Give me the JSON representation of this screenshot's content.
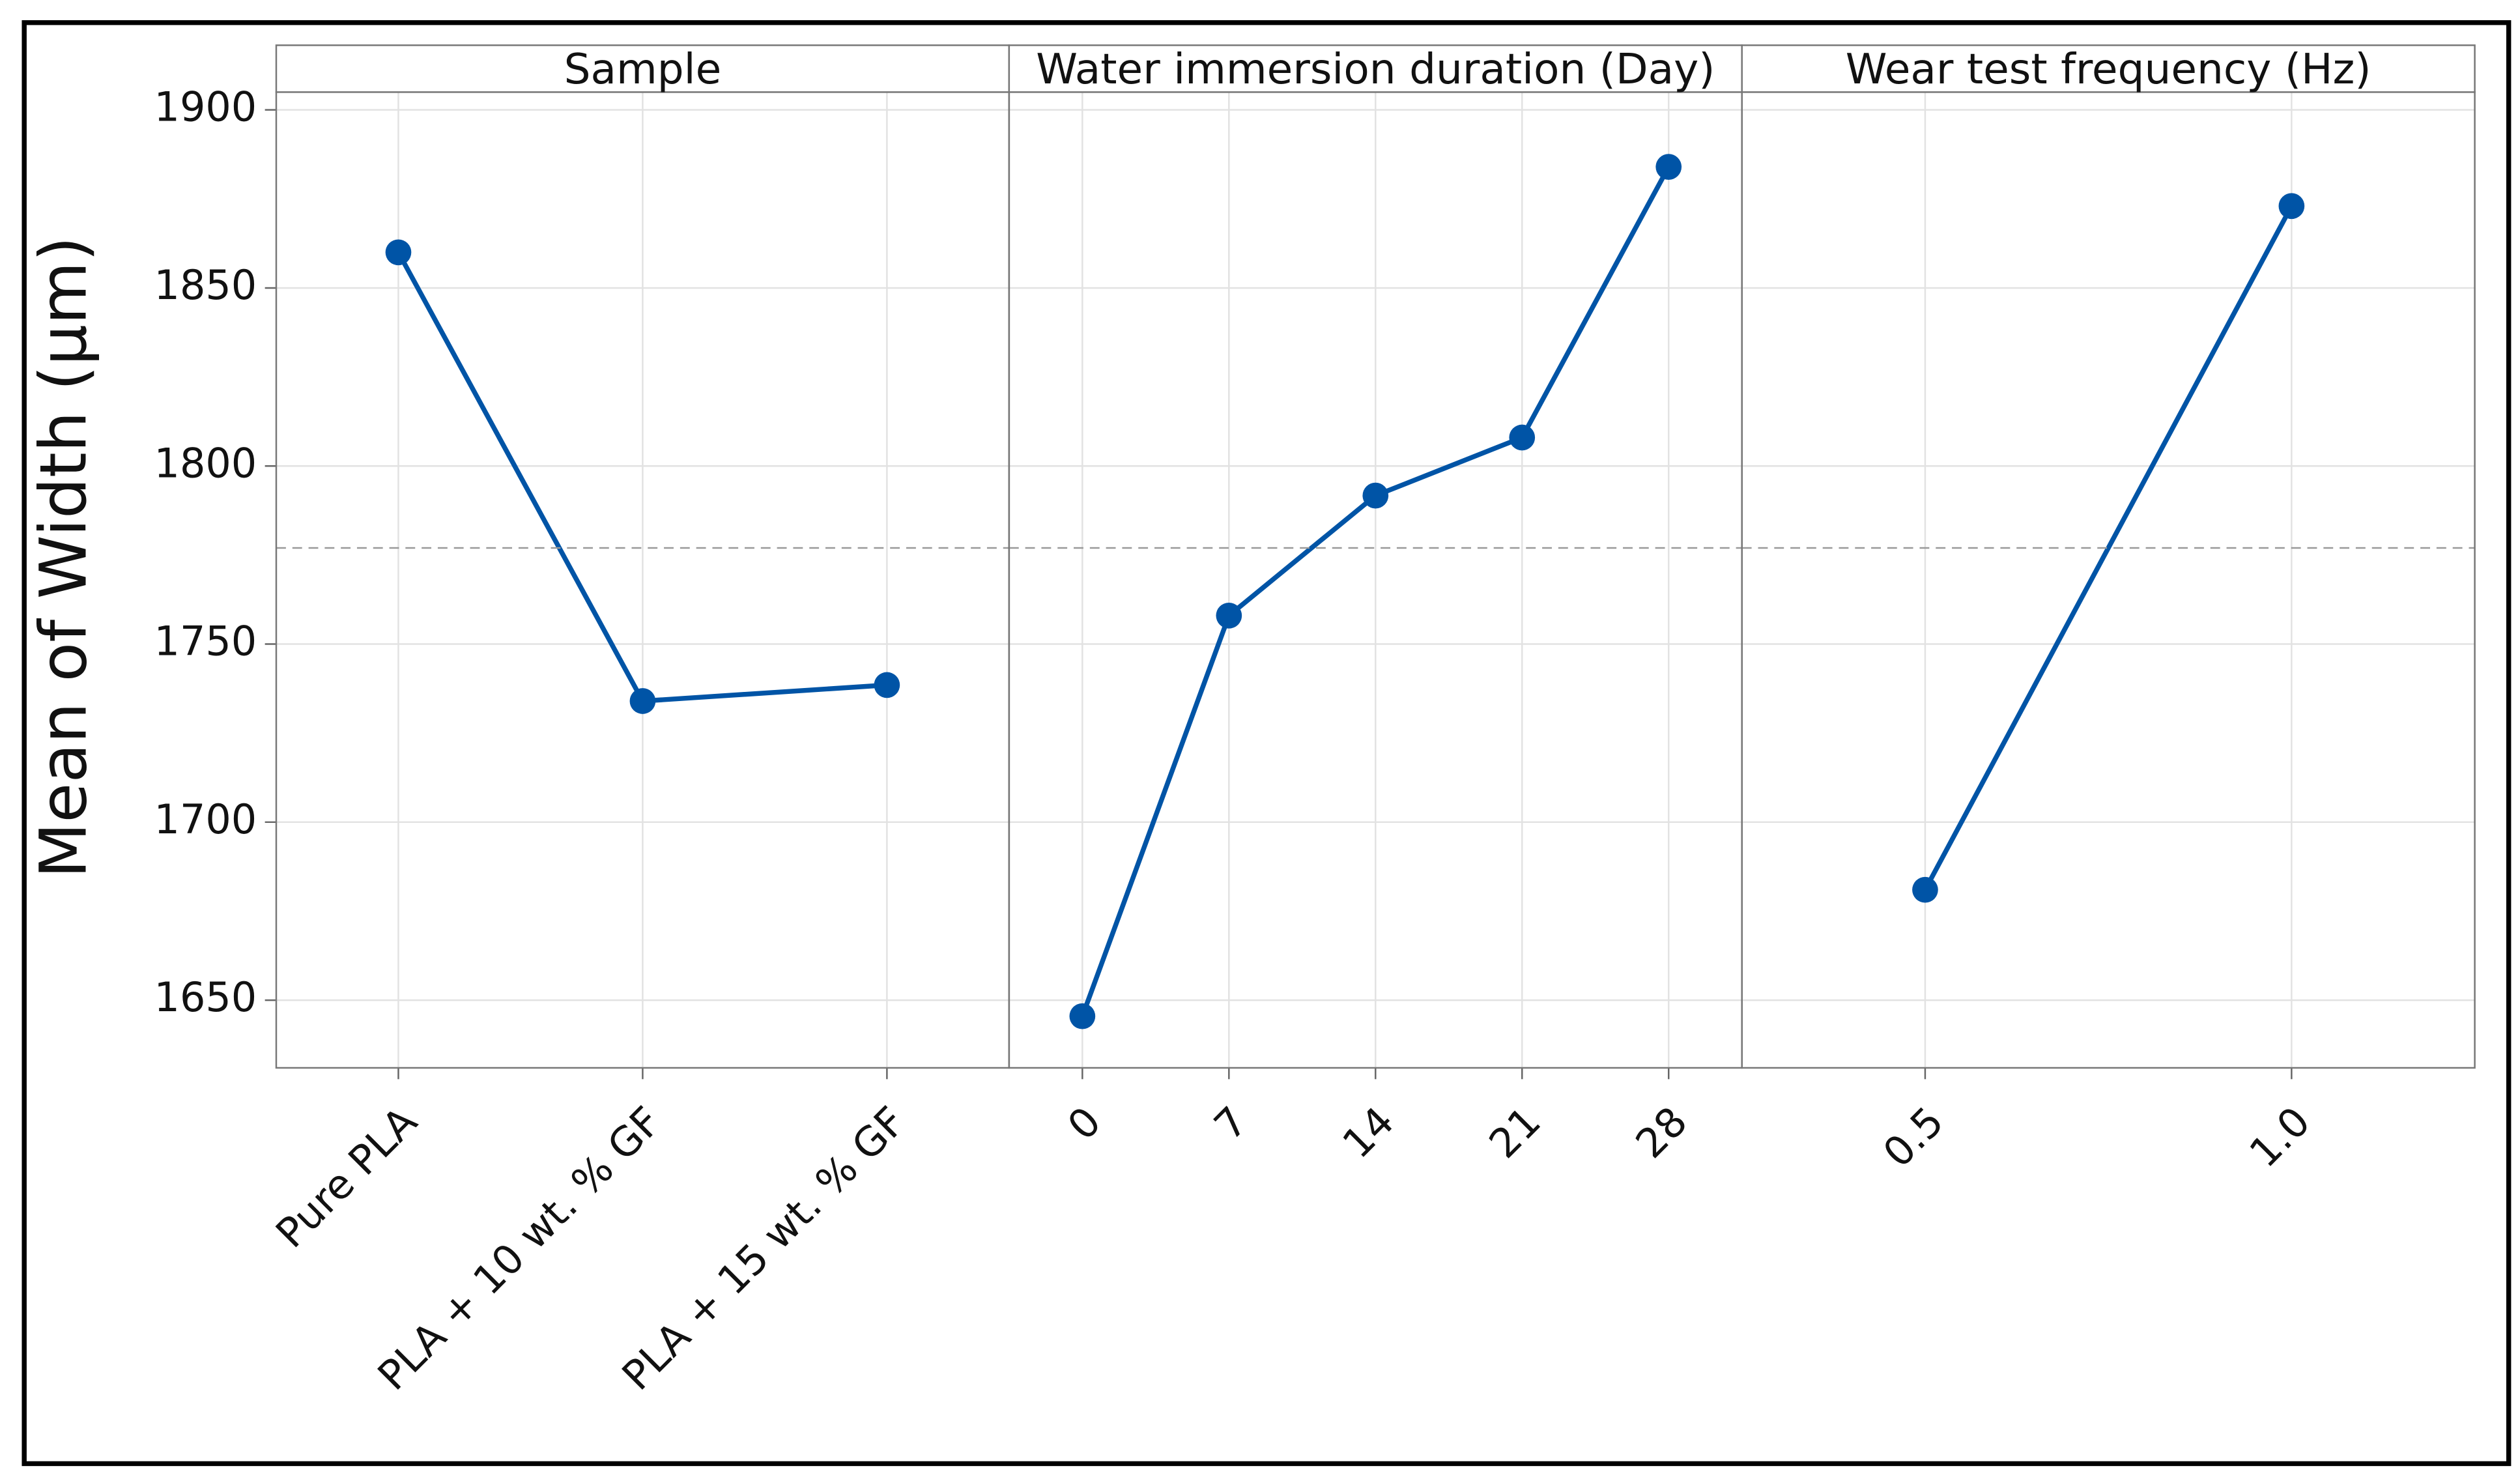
{
  "chart_data": {
    "type": "line",
    "y_label": "Mean of Width (µm)",
    "color": "#0054a6",
    "ylim": [
      1631,
      1905
    ],
    "yticks": [
      1650,
      1700,
      1750,
      1800,
      1850,
      1900
    ],
    "grid": true,
    "reference_line": 1777,
    "panels": [
      {
        "title": "Sample",
        "categories": [
          "Pure PLA",
          "PLA + 10 wt. % GF",
          "PLA + 15 wt. % GF"
        ],
        "values": [
          1860,
          1734,
          1738.5
        ]
      },
      {
        "title": "Water immersion duration (Day)",
        "categories": [
          "0",
          "7",
          "14",
          "21",
          "28"
        ],
        "values": [
          1645.5,
          1758,
          1791.7,
          1808,
          1884
        ]
      },
      {
        "title": "Wear test frequency (Hz)",
        "categories": [
          "0.5",
          "1.0"
        ],
        "values": [
          1681,
          1873
        ]
      }
    ]
  }
}
